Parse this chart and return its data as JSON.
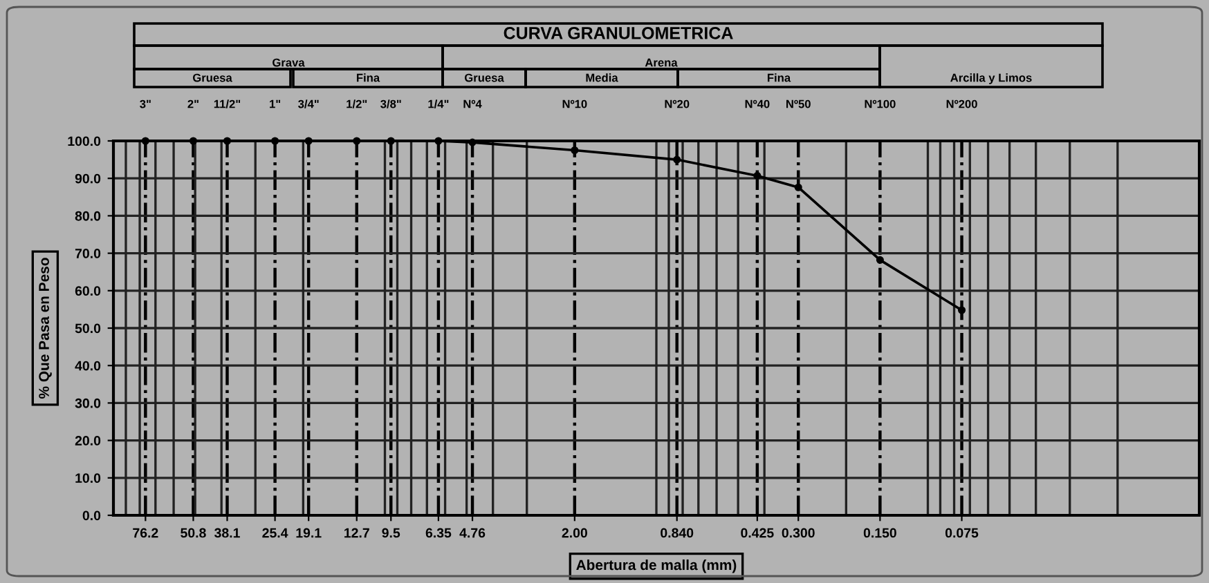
{
  "chart_data": {
    "type": "line",
    "title": "CURVA GRANULOMETRICA",
    "xlabel": "Abertura de malla (mm)",
    "ylabel": "% Que Pasa en Peso",
    "annotations": [
      "Grava",
      "Arena",
      "Arcilla y Limos",
      "Gruesa",
      "Fina",
      "Gruesa",
      "Media",
      "Fina",
      "3\"",
      "2\"",
      "11/2\"",
      "1\"",
      "3/4\"",
      "1/2\"",
      "3/8\"",
      "1/4\"",
      "Nº4",
      "Nº10",
      "Nº20",
      "Nº40",
      "Nº50",
      "Nº100",
      "Nº200"
    ],
    "x": [
      76.2,
      50.8,
      38.1,
      25.4,
      19.1,
      12.7,
      9.5,
      6.35,
      4.76,
      2.0,
      0.84,
      0.425,
      0.3,
      0.15,
      0.075
    ],
    "series": [
      {
        "color": "#000000",
        "values": [
          100,
          100,
          100,
          100,
          100,
          100,
          100,
          100,
          99.6,
          97.5,
          95.0,
          90.7,
          87.6,
          68.2,
          54.8
        ]
      }
    ],
    "log": "x",
    "xlim": [
      100,
      0.01
    ],
    "ylim": [
      0,
      100
    ],
    "xticks": [
      {
        "value": 76.2,
        "label": "76.2"
      },
      {
        "value": 50.8,
        "label": "50.8"
      },
      {
        "value": 38.1,
        "label": "38.1"
      },
      {
        "value": 25.4,
        "label": "25.4"
      },
      {
        "value": 19.1,
        "label": "19.1"
      },
      {
        "value": 12.7,
        "label": "12.7"
      },
      {
        "value": 9.5,
        "label": "9.5"
      },
      {
        "value": 6.35,
        "label": "6.35"
      },
      {
        "value": 4.76,
        "label": "4.76"
      },
      {
        "value": 2.0,
        "label": "2.00"
      },
      {
        "value": 0.84,
        "label": "0.840"
      },
      {
        "value": 0.425,
        "label": "0.425"
      },
      {
        "value": 0.3,
        "label": "0.300"
      },
      {
        "value": 0.15,
        "label": "0.150"
      },
      {
        "value": 0.075,
        "label": "0.075"
      }
    ],
    "yticks": [
      {
        "value": 0,
        "label": "0.0"
      },
      {
        "value": 10,
        "label": "10.0"
      },
      {
        "value": 20,
        "label": "20.0"
      },
      {
        "value": 30,
        "label": "30.0"
      },
      {
        "value": 40,
        "label": "40.0"
      },
      {
        "value": 50,
        "label": "50.0"
      },
      {
        "value": 60,
        "label": "60.0"
      },
      {
        "value": 70,
        "label": "70.0"
      },
      {
        "value": 80,
        "label": "80.0"
      },
      {
        "value": 90,
        "label": "90.0"
      },
      {
        "value": 100,
        "label": "100.0"
      }
    ],
    "grid": true,
    "legend": false,
    "marker": "circle",
    "line_style": "solid"
  }
}
